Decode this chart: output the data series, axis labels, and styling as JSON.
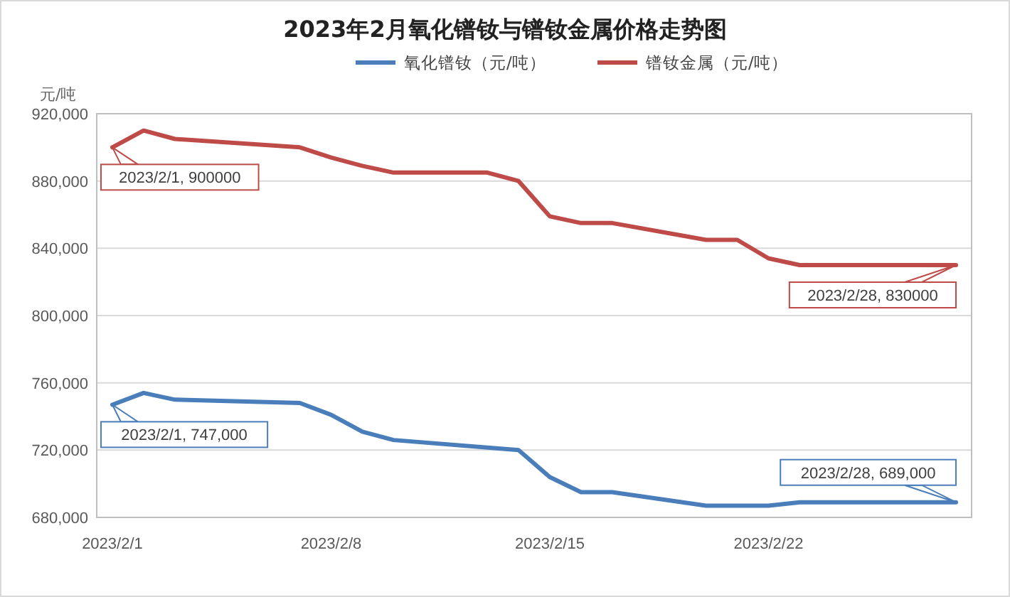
{
  "chart_data": {
    "type": "line",
    "title": "2023年2月氧化镨钕与镨钕金属价格走势图",
    "ylabel": "元/吨",
    "xlim": [
      "2023-01-31T12:00",
      "2023-02-28T12:00"
    ],
    "xticks": [
      {
        "value": "2023-02-01",
        "label": "2023/2/1"
      },
      {
        "value": "2023-02-08",
        "label": "2023/2/8"
      },
      {
        "value": "2023-02-15",
        "label": "2023/2/15"
      },
      {
        "value": "2023-02-22",
        "label": "2023/2/22"
      }
    ],
    "ylim": [
      680000,
      920000
    ],
    "yticks": [
      {
        "value": 680000,
        "label": "680,000"
      },
      {
        "value": 720000,
        "label": "720,000"
      },
      {
        "value": 760000,
        "label": "760,000"
      },
      {
        "value": 800000,
        "label": "800,000"
      },
      {
        "value": 840000,
        "label": "840,000"
      },
      {
        "value": 880000,
        "label": "880,000"
      },
      {
        "value": 920000,
        "label": "920,000"
      }
    ],
    "grid": "y",
    "legend": "top",
    "marker": "none",
    "series": [
      {
        "name": "氧化镨钕（元/吨）",
        "color": "#4a7ebb",
        "x": [
          "2023-02-01",
          "2023-02-02",
          "2023-02-03",
          "2023-02-07",
          "2023-02-08",
          "2023-02-09",
          "2023-02-10",
          "2023-02-14",
          "2023-02-15",
          "2023-02-16",
          "2023-02-17",
          "2023-02-20",
          "2023-02-22",
          "2023-02-23",
          "2023-02-24",
          "2023-02-28"
        ],
        "values": [
          747000,
          754000,
          750000,
          748000,
          741000,
          731000,
          726000,
          720000,
          704000,
          695000,
          695000,
          687000,
          687000,
          689000,
          689000,
          689000
        ]
      },
      {
        "name": "镨钕金属（元/吨）",
        "color": "#be4b48",
        "x": [
          "2023-02-01",
          "2023-02-02",
          "2023-02-03",
          "2023-02-07",
          "2023-02-08",
          "2023-02-09",
          "2023-02-10",
          "2023-02-13",
          "2023-02-14",
          "2023-02-15",
          "2023-02-16",
          "2023-02-17",
          "2023-02-20",
          "2023-02-21",
          "2023-02-22",
          "2023-02-23",
          "2023-02-28"
        ],
        "values": [
          900000,
          910000,
          905000,
          900000,
          894000,
          889000,
          885000,
          885000,
          880000,
          859000,
          855000,
          855000,
          845000,
          845000,
          834000,
          830000,
          830000
        ]
      }
    ],
    "annotations": [
      {
        "text": "2023/2/1, 900000",
        "x": "2023-02-01",
        "y": 900000
      },
      {
        "text": "2023/2/28, 830000",
        "x": "2023-02-28",
        "y": 830000
      },
      {
        "text": "2023/2/1, 747,000",
        "x": "2023-02-01",
        "y": 747000
      },
      {
        "text": "2023/2/28, 689,000",
        "x": "2023-02-28",
        "y": 689000
      }
    ]
  }
}
